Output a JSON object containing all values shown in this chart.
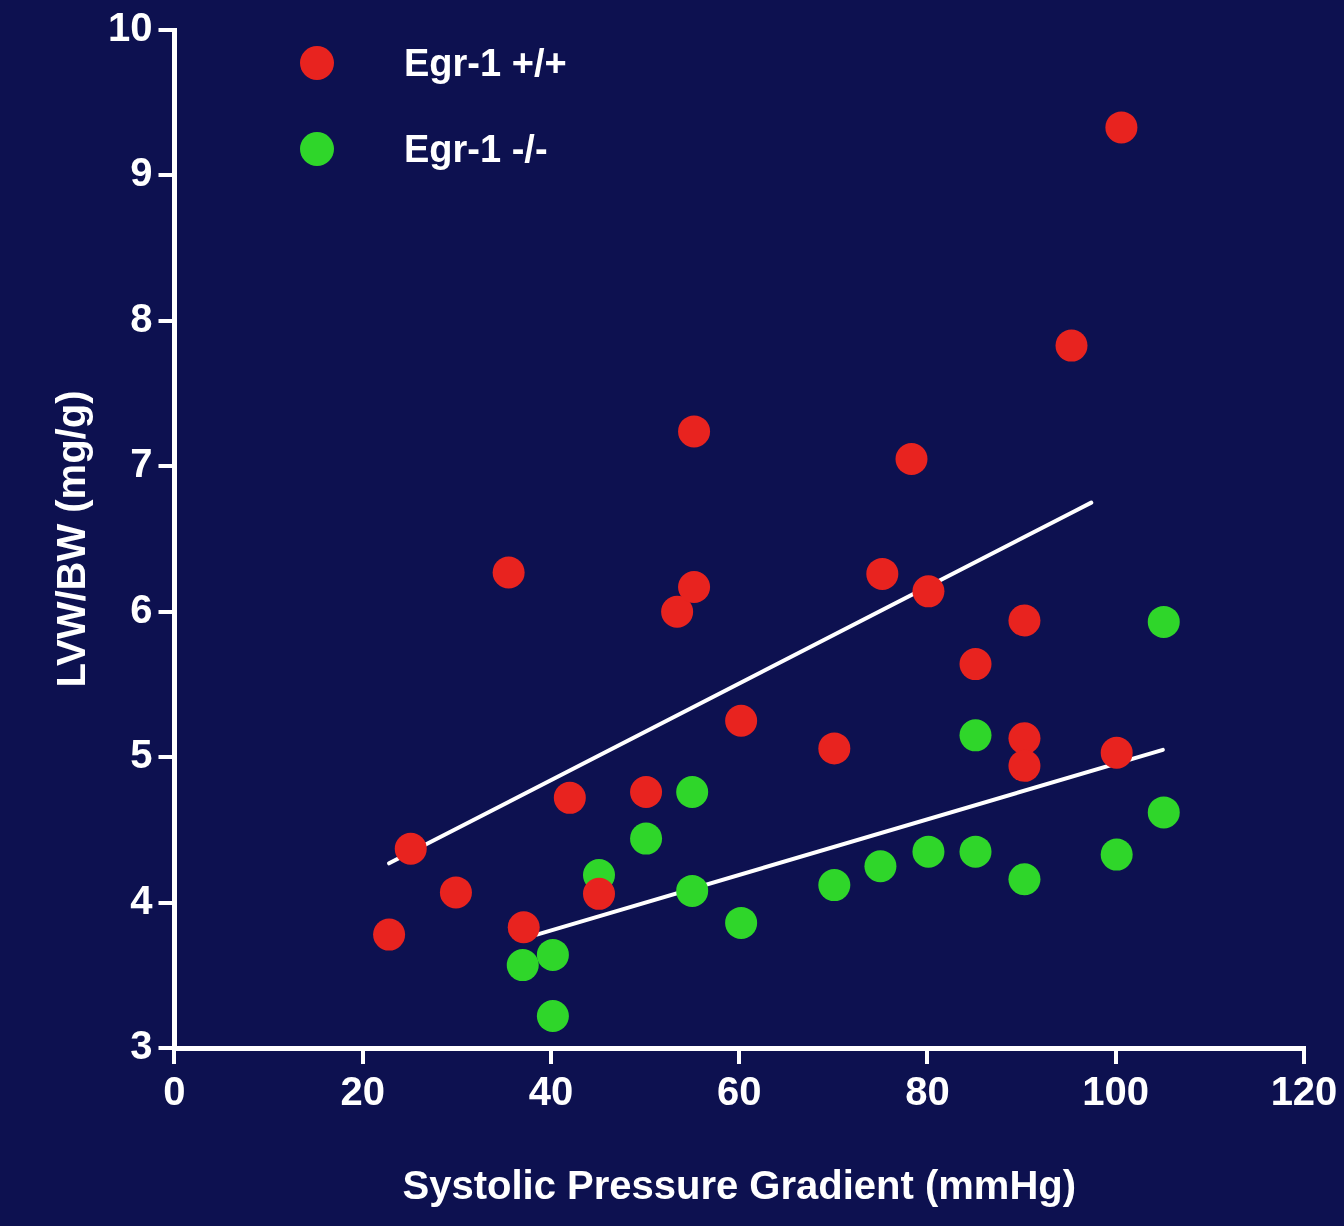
{
  "chart_data": {
    "type": "scatter",
    "xlabel": "Systolic Pressure Gradient (mmHg)",
    "ylabel": "LVW/BW (mg/g)",
    "xlim": [
      0,
      120
    ],
    "xticks": [
      0,
      20,
      40,
      60,
      80,
      100,
      120
    ],
    "ylim": [
      3,
      10
    ],
    "yticks": [
      3,
      4,
      5,
      6,
      7,
      8,
      9,
      10
    ],
    "grid": false,
    "legend": "top left",
    "marker": "circle",
    "series": [
      {
        "name": "Egr-1 +/+",
        "color": "#e8231f",
        "x": [
          22.8,
          25.1,
          29.9,
          35.5,
          37.1,
          42.0,
          45.1,
          50.1,
          53.4,
          55.2,
          55.2,
          60.2,
          70.1,
          75.2,
          78.3,
          80.1,
          85.1,
          90.3,
          90.3,
          90.3,
          95.3,
          100.6,
          100.1
        ],
        "values": [
          3.78,
          4.37,
          4.07,
          6.27,
          3.83,
          4.72,
          4.06,
          4.76,
          6.0,
          6.17,
          7.24,
          5.25,
          5.06,
          6.26,
          7.05,
          6.14,
          5.64,
          5.94,
          5.13,
          4.94,
          7.83,
          9.33,
          5.03
        ]
      },
      {
        "name": "Egr-1 -/-",
        "color": "#2fd62a",
        "x": [
          37.0,
          40.2,
          40.2,
          45.1,
          50.1,
          55.0,
          55.0,
          60.2,
          70.1,
          75.0,
          80.1,
          85.1,
          85.1,
          90.3,
          100.1,
          105.1,
          105.1
        ],
        "values": [
          3.57,
          3.64,
          3.22,
          4.19,
          4.44,
          4.76,
          4.08,
          3.86,
          4.12,
          4.25,
          4.35,
          5.15,
          4.35,
          4.16,
          4.33,
          5.93,
          4.62
        ]
      },
      {
        "type": "line",
        "color": "#ffffff",
        "marker": "none",
        "x": [
          22.8,
          97.4
        ],
        "values": [
          4.27,
          6.75
        ]
      },
      {
        "type": "line",
        "color": "#ffffff",
        "marker": "none",
        "x": [
          38.5,
          105.0
        ],
        "values": [
          3.78,
          5.05
        ]
      }
    ]
  }
}
